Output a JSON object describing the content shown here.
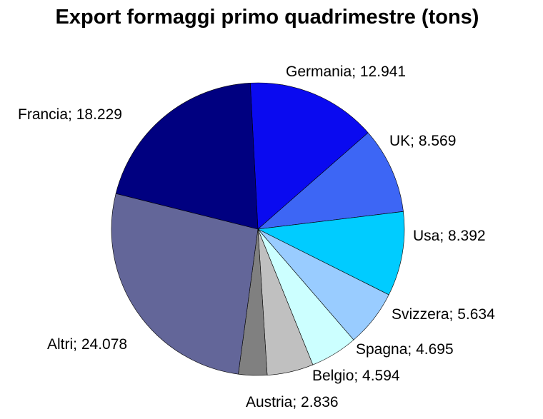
{
  "chart_data": {
    "type": "pie",
    "title": "Export formaggi primo quadrimestre (tons)",
    "start_angle_deg": 93,
    "direction": "clockwise",
    "slices": [
      {
        "label": "Germania; 12.941",
        "category": "Germania",
        "value": 12.941,
        "color": "#0a0af0"
      },
      {
        "label": "UK; 8.569",
        "category": "UK",
        "value": 8.569,
        "color": "#3d66f5"
      },
      {
        "label": "Usa; 8.392",
        "category": "Usa",
        "value": 8.392,
        "color": "#00ccff"
      },
      {
        "label": "Svizzera; 5.634",
        "category": "Svizzera",
        "value": 5.634,
        "color": "#99ccff"
      },
      {
        "label": "Spagna; 4.695",
        "category": "Spagna",
        "value": 4.695,
        "color": "#ccffff"
      },
      {
        "label": "Belgio; 4.594",
        "category": "Belgio",
        "value": 4.594,
        "color": "#c0c0c0"
      },
      {
        "label": "Austria; 2.836",
        "category": "Austria",
        "value": 2.836,
        "color": "#808080"
      },
      {
        "label": "Altri; 24.078",
        "category": "Altri",
        "value": 24.078,
        "color": "#636699"
      },
      {
        "label": "Francia; 18.229",
        "category": "Francia",
        "value": 18.229,
        "color": "#000080"
      }
    ]
  }
}
